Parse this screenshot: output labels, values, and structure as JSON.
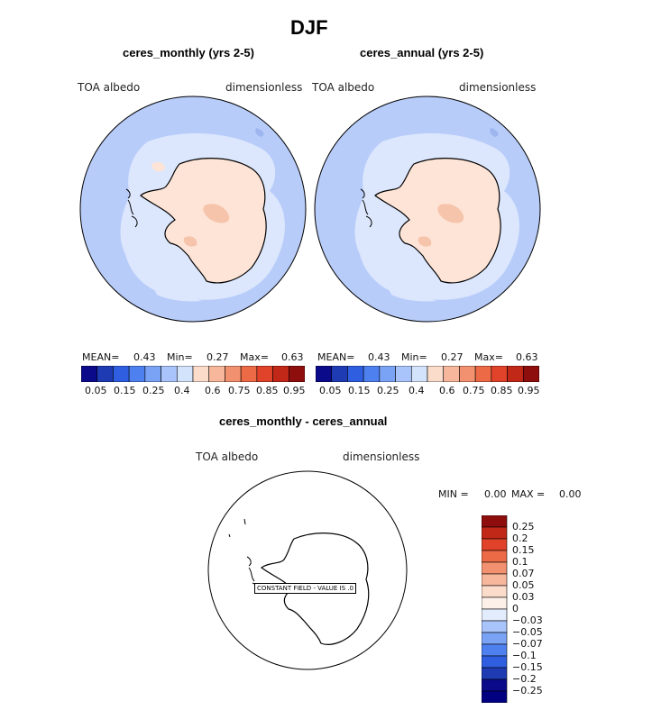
{
  "figure": {
    "title": "DJF"
  },
  "panels": [
    {
      "title": "ceres_monthly (yrs 2-5)",
      "variable": "TOA albedo",
      "units": "dimensionless",
      "stats": {
        "mean_label": "MEAN=",
        "mean": "0.43",
        "min_label": "Min=",
        "min": "0.27",
        "max_label": "Max=",
        "max": "0.63"
      }
    },
    {
      "title": "ceres_annual (yrs 2-5)",
      "variable": "TOA albedo",
      "units": "dimensionless",
      "stats": {
        "mean_label": "MEAN=",
        "mean": "0.43",
        "min_label": "Min=",
        "min": "0.27",
        "max_label": "Max=",
        "max": "0.63"
      }
    }
  ],
  "colorbar": {
    "tick_labels": [
      "0.05",
      "0.15",
      "0.25",
      "0.4",
      "0.6",
      "0.75",
      "0.85",
      "0.95"
    ],
    "colors": [
      "#0a0a8a",
      "#1f3bb4",
      "#2f5fe0",
      "#4e80ef",
      "#7aa2f5",
      "#a9c4fa",
      "#d4e3fc",
      "#fbdccb",
      "#f6b79c",
      "#f2916f",
      "#ec6a45",
      "#e0432a",
      "#c22818",
      "#8e0d0d"
    ]
  },
  "diff_panel": {
    "title": "ceres_monthly - ceres_annual",
    "variable": "TOA albedo",
    "units": "dimensionless",
    "min_label": "MIN =",
    "min": "0.00",
    "max_label": "MAX =",
    "max": "0.00",
    "annotation": "CONSTANT FIELD - VALUE IS .0",
    "colorbar_labels": [
      "0.25",
      "0.2",
      "0.15",
      "0.1",
      "0.07",
      "0.05",
      "0.03",
      "0",
      "−0.03",
      "−0.05",
      "−0.07",
      "−0.1",
      "−0.15",
      "−0.2",
      "−0.25"
    ],
    "colorbar_colors": [
      "#8e0d0d",
      "#c22818",
      "#e0432a",
      "#ec6a45",
      "#f2916f",
      "#f6b79c",
      "#fbdccb",
      "#fdf0e8",
      "#e3ecfd",
      "#a9c4fa",
      "#7aa2f5",
      "#4e80ef",
      "#2f5fe0",
      "#1f3bb4",
      "#0a0a8a",
      "#000080"
    ]
  },
  "map_colors": {
    "ocean": "#b8ccfa",
    "sea_ice": "#dce7fd",
    "land": "#fde4d6",
    "land_high": "#f6c3ab",
    "dark_ocean": "#9eb6f0"
  }
}
